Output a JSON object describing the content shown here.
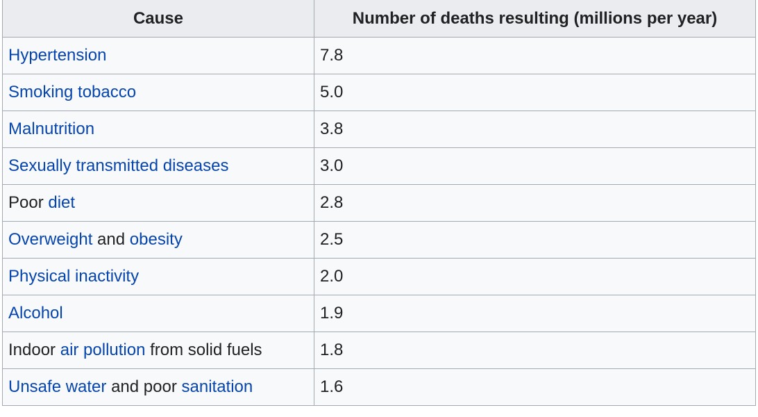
{
  "table": {
    "header": [
      "Cause",
      "Number of deaths resulting (millions per year)"
    ],
    "rows": [
      {
        "cause": [
          {
            "text": "Hypertension",
            "link": true
          }
        ],
        "deaths": "7.8"
      },
      {
        "cause": [
          {
            "text": "Smoking tobacco",
            "link": true
          }
        ],
        "deaths": "5.0"
      },
      {
        "cause": [
          {
            "text": "Malnutrition",
            "link": true
          }
        ],
        "deaths": "3.8"
      },
      {
        "cause": [
          {
            "text": "Sexually transmitted diseases",
            "link": true
          }
        ],
        "deaths": "3.0"
      },
      {
        "cause": [
          {
            "text": "Poor ",
            "link": false
          },
          {
            "text": "diet",
            "link": true
          }
        ],
        "deaths": "2.8"
      },
      {
        "cause": [
          {
            "text": "Overweight",
            "link": true
          },
          {
            "text": " and ",
            "link": false
          },
          {
            "text": "obesity",
            "link": true
          }
        ],
        "deaths": "2.5"
      },
      {
        "cause": [
          {
            "text": "Physical inactivity",
            "link": true
          }
        ],
        "deaths": "2.0"
      },
      {
        "cause": [
          {
            "text": "Alcohol",
            "link": true
          }
        ],
        "deaths": "1.9"
      },
      {
        "cause": [
          {
            "text": "Indoor ",
            "link": false
          },
          {
            "text": "air pollution",
            "link": true
          },
          {
            "text": " from solid fuels",
            "link": false
          }
        ],
        "deaths": "1.8"
      },
      {
        "cause": [
          {
            "text": "Unsafe water",
            "link": true
          },
          {
            "text": " and poor ",
            "link": false
          },
          {
            "text": "sanitation",
            "link": true
          }
        ],
        "deaths": "1.6"
      }
    ]
  }
}
